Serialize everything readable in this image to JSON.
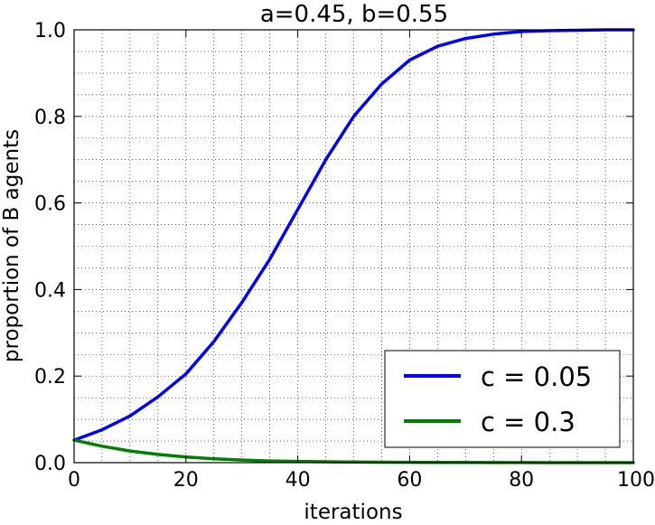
{
  "chart_data": {
    "type": "line",
    "title": "a=0.45, b=0.55",
    "xlabel": "iterations",
    "ylabel": "proportion of B agents",
    "xlim": [
      0,
      100
    ],
    "ylim": [
      0,
      1.0
    ],
    "xticks": [
      0,
      20,
      40,
      60,
      80,
      100
    ],
    "yticks": [
      0.0,
      0.2,
      0.4,
      0.6,
      0.8,
      1.0
    ],
    "xtick_labels": [
      "0",
      "20",
      "40",
      "60",
      "80",
      "100"
    ],
    "ytick_labels": [
      "0.0",
      "0.2",
      "0.4",
      "0.6",
      "0.8",
      "1.0"
    ],
    "grid": true,
    "legend_position": "bottom-right",
    "x": [
      0,
      5,
      10,
      15,
      20,
      25,
      30,
      35,
      40,
      45,
      50,
      55,
      60,
      65,
      70,
      75,
      80,
      85,
      90,
      95,
      100
    ],
    "series": [
      {
        "name": "c = 0.05",
        "color": "#0000ff",
        "values": [
          0.052,
          0.076,
          0.108,
          0.152,
          0.205,
          0.28,
          0.37,
          0.47,
          0.585,
          0.7,
          0.8,
          0.875,
          0.93,
          0.962,
          0.98,
          0.99,
          0.996,
          0.998,
          0.999,
          1.0,
          1.0
        ]
      },
      {
        "name": "c = 0.3",
        "color": "#008000",
        "values": [
          0.052,
          0.038,
          0.027,
          0.019,
          0.013,
          0.009,
          0.006,
          0.004,
          0.003,
          0.002,
          0.0015,
          0.001,
          0.0008,
          0.0005,
          0.0004,
          0.0003,
          0.0002,
          0.0001,
          0.0001,
          0.0,
          0.0
        ]
      }
    ]
  }
}
